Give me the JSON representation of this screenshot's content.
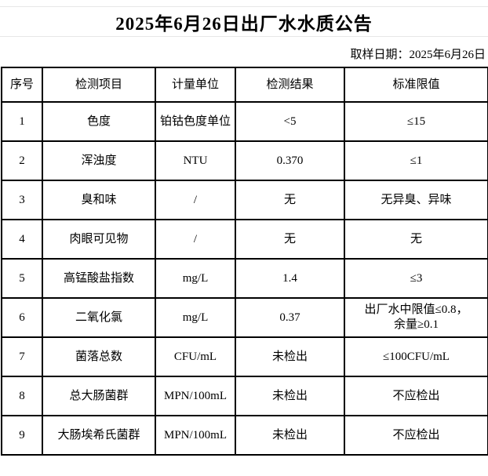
{
  "page": {
    "title": "2025年6月26日出厂水水质公告",
    "sampling_date": "取样日期：2025年6月26日"
  },
  "table": {
    "columns": [
      "序号",
      "检测项目",
      "计量单位",
      "检测结果",
      "标准限值"
    ],
    "rows": [
      {
        "no": "1",
        "item": "色度",
        "unit": "铂钴色度单位",
        "result": "<5",
        "limit": "≤15"
      },
      {
        "no": "2",
        "item": "浑浊度",
        "unit": "NTU",
        "result": "0.370",
        "limit": "≤1"
      },
      {
        "no": "3",
        "item": "臭和味",
        "unit": "/",
        "result": "无",
        "limit": "无异臭、异味"
      },
      {
        "no": "4",
        "item": "肉眼可见物",
        "unit": "/",
        "result": "无",
        "limit": "无"
      },
      {
        "no": "5",
        "item": "高锰酸盐指数",
        "unit": "mg/L",
        "result": "1.4",
        "limit": "≤3"
      },
      {
        "no": "6",
        "item": "二氧化氯",
        "unit": "mg/L",
        "result": "0.37",
        "limit": "出厂水中限值≤0.8，\n余量≥0.1"
      },
      {
        "no": "7",
        "item": "菌落总数",
        "unit": "CFU/mL",
        "result": "未检出",
        "limit": "≤100CFU/mL"
      },
      {
        "no": "8",
        "item": "总大肠菌群",
        "unit": "MPN/100mL",
        "result": "未检出",
        "limit": "不应检出"
      },
      {
        "no": "9",
        "item": "大肠埃希氏菌群",
        "unit": "MPN/100mL",
        "result": "未检出",
        "limit": "不应检出"
      }
    ]
  },
  "colors": {
    "text": "#000000",
    "background": "#ffffff",
    "table_border": "#000000",
    "faint_line": "#e7e7e7"
  }
}
